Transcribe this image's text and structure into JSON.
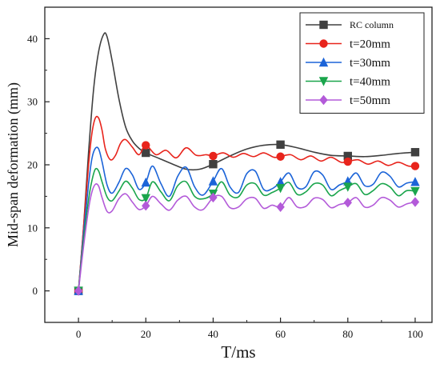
{
  "chart_data": {
    "type": "line",
    "xlabel": "T/ms",
    "ylabel": "Mid-span deformation (mm)",
    "xlim": [
      -10,
      105
    ],
    "ylim": [
      -5,
      45
    ],
    "xticks": [
      0,
      20,
      40,
      60,
      80,
      100
    ],
    "yticks": [
      0,
      10,
      20,
      30,
      40
    ],
    "grid": false,
    "legend_position": "top-right",
    "series": [
      {
        "name": "RC column",
        "color": "#404040",
        "marker": "square",
        "markers_x": [
          0,
          20,
          40,
          60,
          80,
          100
        ],
        "markers_y": [
          0,
          21.9,
          20.1,
          23.2,
          21.4,
          22.0
        ],
        "x": [
          0,
          1.5,
          3,
          4.5,
          6,
          7.5,
          8.5,
          10,
          12,
          14,
          16,
          18,
          20,
          24,
          28,
          32,
          36,
          40,
          45,
          50,
          55,
          60,
          65,
          70,
          75,
          80,
          85,
          90,
          95,
          100
        ],
        "y": [
          0,
          10,
          22,
          32,
          38,
          40.7,
          40.3,
          36.5,
          30.5,
          26,
          23.8,
          22.6,
          21.9,
          21.0,
          20.1,
          19.3,
          19.3,
          20.1,
          21.4,
          22.5,
          23.1,
          23.2,
          22.7,
          22.0,
          21.5,
          21.4,
          21.3,
          21.5,
          21.8,
          22.0
        ]
      },
      {
        "name": "t=20mm",
        "color": "#e8241c",
        "marker": "circle",
        "markers_x": [
          0,
          20,
          40,
          60,
          80,
          100
        ],
        "markers_y": [
          0,
          23.1,
          21.4,
          21.3,
          20.5,
          19.8
        ],
        "x": [
          0,
          1.5,
          3,
          4,
          5,
          6,
          7,
          8,
          9.5,
          11,
          12.5,
          14,
          16,
          18,
          20,
          23,
          26,
          29,
          32,
          35,
          38,
          40,
          43,
          46,
          49,
          52,
          55,
          58,
          60,
          63,
          66,
          69,
          72,
          75,
          78,
          80,
          83,
          86,
          89,
          92,
          95,
          98,
          100
        ],
        "y": [
          0,
          10,
          20,
          25,
          27.4,
          27.4,
          25.5,
          22.5,
          20.8,
          21.5,
          23.4,
          24.0,
          22.8,
          21.6,
          23.1,
          21.6,
          22.3,
          21.1,
          22.7,
          21.5,
          21.6,
          21.4,
          21.9,
          21.2,
          21.8,
          21.3,
          21.9,
          21.2,
          21.3,
          21.6,
          20.8,
          21.4,
          20.6,
          21.2,
          20.4,
          20.5,
          20.8,
          20.1,
          20.6,
          19.9,
          20.4,
          19.8,
          19.8
        ]
      },
      {
        "name": "t=30mm",
        "color": "#1c64d8",
        "marker": "triangle-up",
        "markers_x": [
          0,
          20,
          40,
          60,
          80,
          100
        ],
        "markers_y": [
          0,
          17.2,
          17.4,
          17.3,
          17.4,
          17.3
        ],
        "x": [
          0,
          1.5,
          3,
          4,
          5,
          6,
          7,
          8.5,
          10,
          12,
          14,
          16,
          18,
          20,
          22,
          24.5,
          27,
          29.5,
          32,
          34.5,
          37,
          40,
          42.5,
          45,
          47.5,
          50,
          52.5,
          55,
          57.5,
          60,
          62.5,
          65,
          67.5,
          70,
          72.5,
          75,
          77.5,
          80,
          82.5,
          85,
          87.5,
          90,
          92.5,
          95,
          97.5,
          100
        ],
        "y": [
          0,
          9,
          17,
          21,
          22.6,
          22.5,
          20.5,
          16.8,
          15.5,
          17.2,
          19.4,
          18.4,
          16.1,
          17.2,
          19.8,
          17.0,
          15.0,
          18.2,
          19.6,
          16.5,
          15.2,
          17.4,
          19.4,
          16.5,
          15.6,
          18.6,
          19.0,
          16.1,
          16.2,
          17.3,
          18.7,
          16.4,
          16.5,
          18.9,
          18.4,
          16.1,
          16.8,
          17.4,
          18.7,
          16.7,
          16.9,
          18.8,
          18.2,
          16.5,
          17.1,
          17.3
        ]
      },
      {
        "name": "t=40mm",
        "color": "#1aa54c",
        "marker": "triangle-down",
        "markers_x": [
          0,
          20,
          40,
          60,
          80,
          100
        ],
        "markers_y": [
          0,
          14.7,
          15.4,
          16.3,
          16.5,
          15.8
        ],
        "x": [
          0,
          1.5,
          3,
          4,
          5,
          6,
          7,
          8.5,
          10,
          12,
          14,
          16,
          18,
          20,
          22,
          24.5,
          27,
          29.5,
          32,
          34.5,
          37,
          40,
          42.5,
          45,
          47.5,
          50,
          52.5,
          55,
          57.5,
          60,
          62.5,
          65,
          67.5,
          70,
          72.5,
          75,
          77.5,
          80,
          82.5,
          85,
          87.5,
          90,
          92.5,
          95,
          97.5,
          100
        ],
        "y": [
          0,
          8,
          14.5,
          17.5,
          19.3,
          19.0,
          17.3,
          14.9,
          14.3,
          15.8,
          17.4,
          16.3,
          14.5,
          14.7,
          17.3,
          15.7,
          14.3,
          16.7,
          17.3,
          15.0,
          14.6,
          15.4,
          17.3,
          15.2,
          14.9,
          16.8,
          17.0,
          15.2,
          15.6,
          16.3,
          17.2,
          15.3,
          15.7,
          17.0,
          16.8,
          15.1,
          15.9,
          16.5,
          17.0,
          15.3,
          15.9,
          17.0,
          16.5,
          15.1,
          15.9,
          15.8
        ]
      },
      {
        "name": "t=50mm",
        "color": "#b35ad9",
        "marker": "diamond",
        "markers_x": [
          0,
          20,
          40,
          60,
          80,
          100
        ],
        "markers_y": [
          0,
          13.5,
          14.8,
          13.3,
          14.0,
          14.1
        ],
        "x": [
          0,
          1.5,
          3,
          4,
          5,
          6,
          7,
          8.5,
          10,
          12,
          14,
          16,
          18,
          20,
          22,
          24.5,
          27,
          29.5,
          32,
          34.5,
          37,
          40,
          42.5,
          45,
          47.5,
          50,
          52.5,
          55,
          57.5,
          60,
          62.5,
          65,
          67.5,
          70,
          72.5,
          75,
          77.5,
          80,
          82.5,
          85,
          87.5,
          90,
          92.5,
          95,
          97.5,
          100
        ],
        "y": [
          0,
          7,
          13,
          15.7,
          16.9,
          16.6,
          14.8,
          12.6,
          12.7,
          14.6,
          15.4,
          14.1,
          12.9,
          13.5,
          15.0,
          13.8,
          12.8,
          14.4,
          15.0,
          13.3,
          12.9,
          14.8,
          15.0,
          13.2,
          13.3,
          14.6,
          14.7,
          13.1,
          13.6,
          13.3,
          14.8,
          13.3,
          13.4,
          14.7,
          14.5,
          13.2,
          13.7,
          14.0,
          14.8,
          13.3,
          13.6,
          14.8,
          14.4,
          13.3,
          13.8,
          14.1
        ]
      }
    ]
  }
}
